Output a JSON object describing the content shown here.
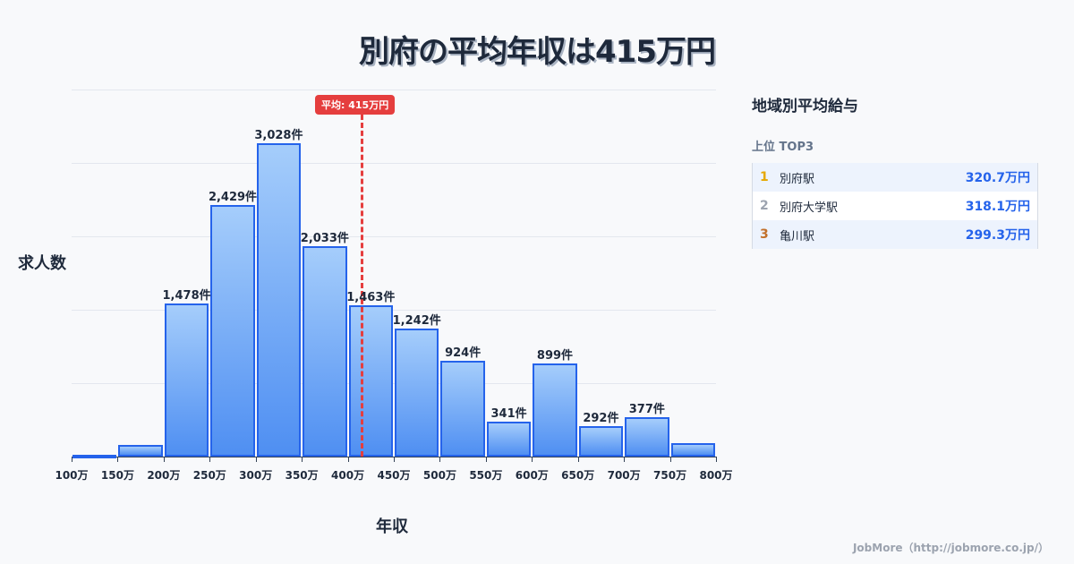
{
  "header": {
    "title": "別府の平均年収は415万円"
  },
  "chart_data": {
    "type": "bar",
    "title": "別府の平均年収は415万円",
    "xlabel": "年収",
    "ylabel": "求人数",
    "categories": [
      "100-150万",
      "150-200万",
      "200-250万",
      "250-300万",
      "300-350万",
      "350-400万",
      "400-450万",
      "450-500万",
      "500-550万",
      "550-600万",
      "600-650万",
      "650-700万",
      "700-750万",
      "750-800万"
    ],
    "values": [
      10,
      113,
      1478,
      2429,
      3028,
      2033,
      1463,
      1242,
      924,
      341,
      899,
      292,
      377,
      130
    ],
    "bar_labels": [
      "",
      "",
      "1,478件",
      "2,429件",
      "3,028件",
      "2,033件",
      "1,463件",
      "1,242件",
      "924件",
      "341件",
      "899件",
      "292件",
      "377件",
      ""
    ],
    "x_ticks": [
      "100万",
      "150万",
      "200万",
      "250万",
      "300万",
      "350万",
      "400万",
      "450万",
      "500万",
      "550万",
      "600万",
      "650万",
      "700万",
      "750万",
      "800万"
    ],
    "ylim": [
      0,
      3550
    ],
    "grid": true,
    "average": {
      "value": 415,
      "label": "平均: 415万円"
    }
  },
  "panel": {
    "title": "地域別平均給与",
    "subtitle": "上位 TOP3",
    "ranks": [
      {
        "num": "1",
        "name": "別府駅",
        "value": "320.7万円",
        "color": "#e6a800"
      },
      {
        "num": "2",
        "name": "別府大学駅",
        "value": "318.1万円",
        "color": "#9ca3af"
      },
      {
        "num": "3",
        "name": "亀川駅",
        "value": "299.3万円",
        "color": "#c2702b"
      }
    ]
  },
  "footer": {
    "credit": "JobMore（http://jobmore.co.jp/）"
  }
}
